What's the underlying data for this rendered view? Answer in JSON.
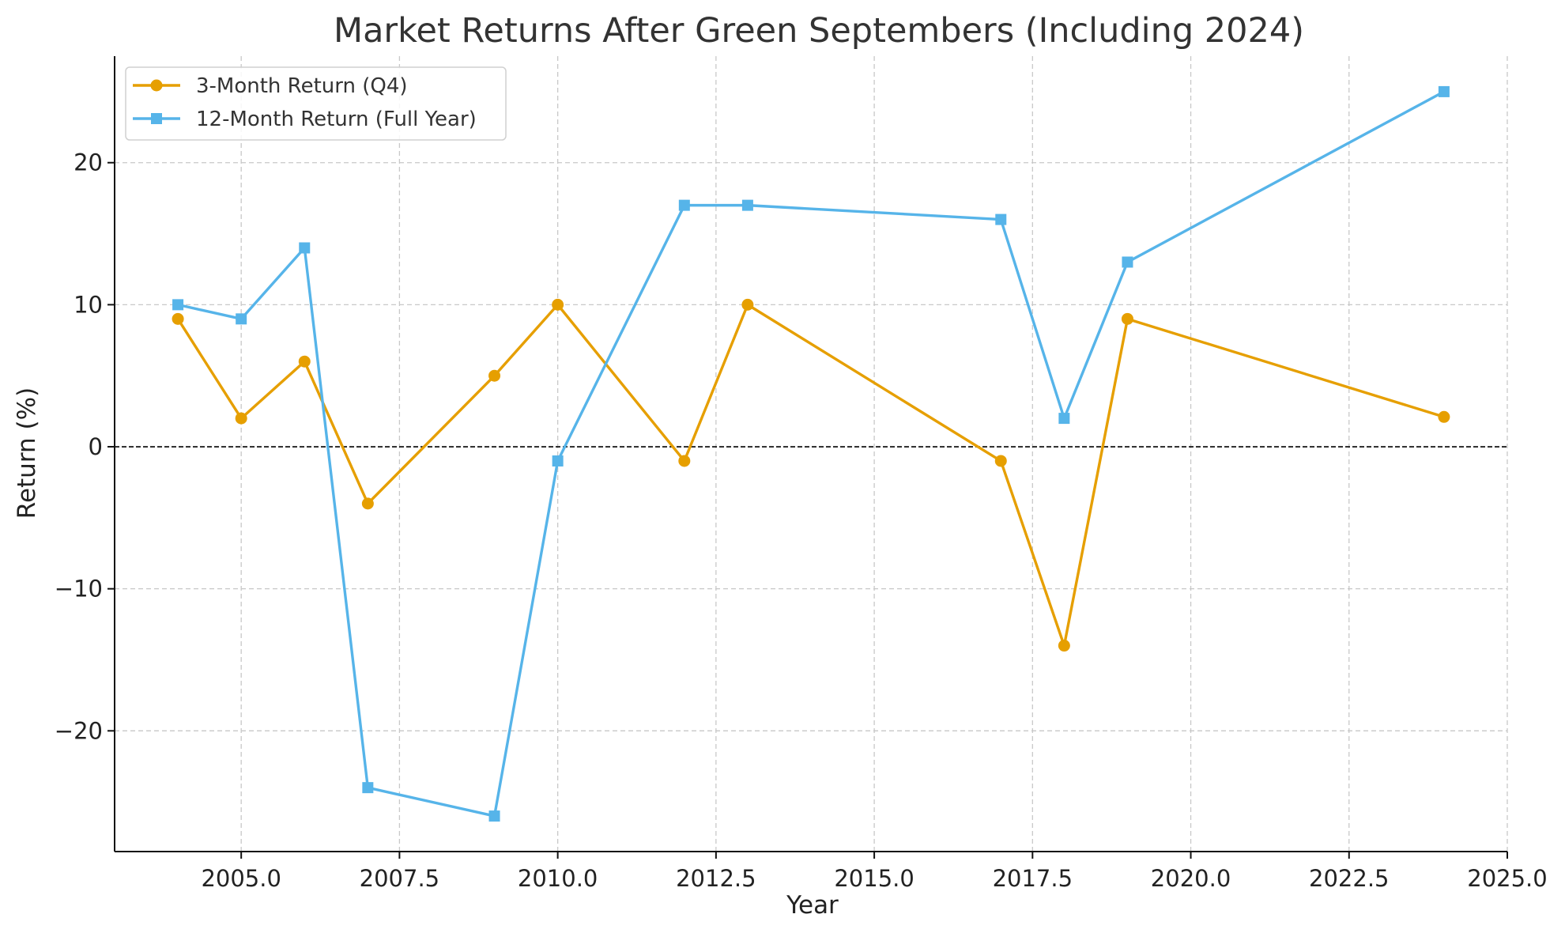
{
  "chart_data": {
    "type": "line",
    "title": "Market Returns After Green Septembers (Including 2024)",
    "xlabel": "Year",
    "ylabel": "Return (%)",
    "xlim": [
      2003,
      2025
    ],
    "ylim": [
      -28.5,
      27.5
    ],
    "xticks": [
      2005.0,
      2007.5,
      2010.0,
      2012.5,
      2015.0,
      2017.5,
      2020.0,
      2022.5,
      2025.0
    ],
    "xtick_labels": [
      "2005.0",
      "2007.5",
      "2010.0",
      "2012.5",
      "2015.0",
      "2017.5",
      "2020.0",
      "2022.5",
      "2025.0"
    ],
    "yticks": [
      -20,
      -10,
      0,
      10,
      20
    ],
    "ytick_labels": [
      "−20",
      "−10",
      "0",
      "10",
      "20"
    ],
    "grid": true,
    "zero_line": true,
    "legend_position": "top-left",
    "x": [
      2004,
      2005,
      2006,
      2007,
      2009,
      2010,
      2012,
      2013,
      2017,
      2018,
      2019,
      2024
    ],
    "series": [
      {
        "name": "3-Month Return (Q4)",
        "color": "#E69F00",
        "marker": "circle",
        "values": [
          9,
          2,
          6,
          -4,
          5,
          10,
          -1,
          10,
          -1,
          -14,
          9,
          2.1
        ]
      },
      {
        "name": "12-Month Return (Full Year)",
        "color": "#56B4E9",
        "marker": "square",
        "values": [
          10,
          9,
          14,
          -24,
          -26,
          -1,
          17,
          17,
          16,
          2,
          13,
          25
        ]
      }
    ]
  }
}
